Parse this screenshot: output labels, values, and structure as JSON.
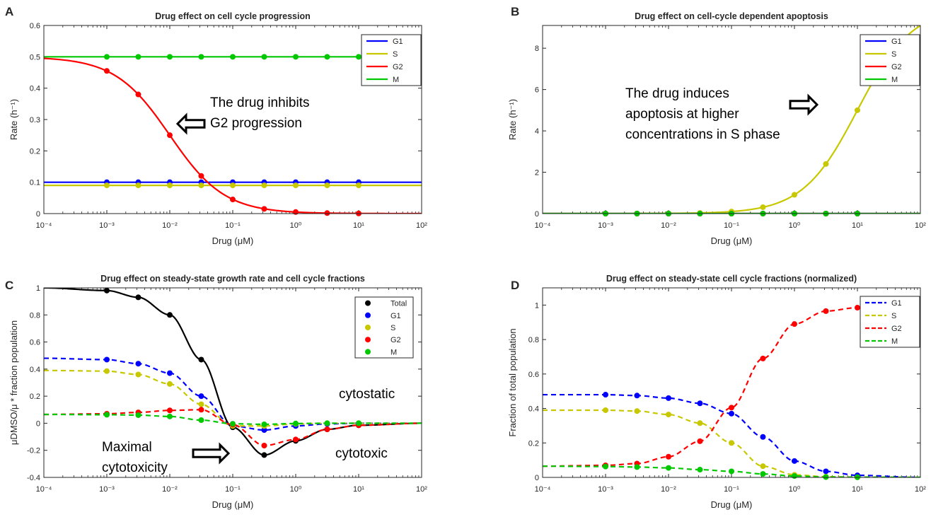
{
  "figure_panels": [
    "A",
    "B",
    "C",
    "D"
  ],
  "chart_data": [
    {
      "panel": "A",
      "type": "line",
      "title": "Drug effect on cell cycle progression",
      "xlabel": "Drug (μM)",
      "ylabel": "Rate (h⁻¹)",
      "xscale": "log",
      "xlim": [
        0.0001,
        100
      ],
      "ylim": [
        0,
        0.6
      ],
      "xticks": [
        "10⁻⁴",
        "10⁻³",
        "10⁻²",
        "10⁻¹",
        "10⁰",
        "10¹",
        "10²"
      ],
      "yticks": [
        "0",
        "0.1",
        "0.2",
        "0.3",
        "0.4",
        "0.5",
        "0.6"
      ],
      "legend_position": "top-right",
      "markers_x": [
        0.001,
        0.00316,
        0.01,
        0.0316,
        0.1,
        0.316,
        1,
        3.16,
        10
      ],
      "series": [
        {
          "name": "G1",
          "color": "#0000ff",
          "style": "solid",
          "curve": "const",
          "params": {
            "v": 0.1
          },
          "markers": [
            0.1,
            0.1,
            0.1,
            0.1,
            0.1,
            0.1,
            0.1,
            0.1,
            0.1
          ]
        },
        {
          "name": "S",
          "color": "#c8c800",
          "style": "solid",
          "curve": "const",
          "params": {
            "v": 0.09
          },
          "markers": [
            0.09,
            0.09,
            0.09,
            0.09,
            0.09,
            0.09,
            0.09,
            0.09,
            0.09
          ]
        },
        {
          "name": "G2",
          "color": "#ff0000",
          "style": "solid",
          "curve": "hill_down",
          "params": {
            "top": 0.5,
            "ec50": 0.01,
            "n": 1
          },
          "markers": [
            0.455,
            0.38,
            0.25,
            0.12,
            0.045,
            0.015,
            0.005,
            0.0016,
            0.0005
          ]
        },
        {
          "name": "M",
          "color": "#00c800",
          "style": "solid",
          "curve": "const",
          "params": {
            "v": 0.5
          },
          "markers": [
            0.5,
            0.5,
            0.5,
            0.5,
            0.5,
            0.5,
            0.5,
            0.5,
            0.5
          ]
        }
      ],
      "annotation": {
        "lines": [
          "The drug inhibits",
          "G2 progression"
        ]
      }
    },
    {
      "panel": "B",
      "type": "line",
      "title": "Drug effect on cell-cycle dependent apoptosis",
      "xlabel": "Drug (μM)",
      "ylabel": "Rate (h⁻¹)",
      "xscale": "log",
      "xlim": [
        0.0001,
        100
      ],
      "ylim": [
        0,
        9.1
      ],
      "xticks": [
        "10⁻⁴",
        "10⁻³",
        "10⁻²",
        "10⁻¹",
        "10⁰",
        "10¹",
        "10²"
      ],
      "yticks": [
        "0",
        "2",
        "4",
        "6",
        "8"
      ],
      "legend_position": "top-right",
      "markers_x": [
        0.001,
        0.00316,
        0.01,
        0.0316,
        0.1,
        0.316,
        1,
        3.16,
        10
      ],
      "series": [
        {
          "name": "G1",
          "color": "#0000ff",
          "style": "solid",
          "curve": "const",
          "params": {
            "v": 0
          },
          "markers": [
            0,
            0,
            0,
            0,
            0,
            0,
            0,
            0,
            0
          ]
        },
        {
          "name": "S",
          "color": "#c8c800",
          "style": "solid",
          "curve": "hill_up",
          "params": {
            "top": 10,
            "ec50": 10,
            "n": 1
          },
          "markers": [
            0.001,
            0.003,
            0.01,
            0.032,
            0.1,
            0.31,
            0.91,
            2.4,
            5
          ]
        },
        {
          "name": "G2",
          "color": "#ff0000",
          "style": "solid",
          "curve": "const",
          "params": {
            "v": 0
          },
          "markers": [
            0,
            0,
            0,
            0,
            0,
            0,
            0,
            0,
            0
          ]
        },
        {
          "name": "M",
          "color": "#00c800",
          "style": "solid",
          "curve": "const",
          "params": {
            "v": 0
          },
          "markers": [
            0,
            0,
            0,
            0,
            0,
            0,
            0,
            0,
            0
          ]
        }
      ],
      "annotation": {
        "lines": [
          "The drug induces",
          "apoptosis at higher",
          "concentrations in S phase"
        ]
      }
    },
    {
      "panel": "C",
      "type": "line",
      "title": "Drug effect on steady-state growth rate and cell cycle fractions",
      "xlabel": "Drug (μM)",
      "ylabel": "μDMSO/μ * fraction population",
      "xscale": "log",
      "xlim": [
        0.0001,
        100
      ],
      "ylim": [
        -0.4,
        1
      ],
      "xticks": [
        "10⁻⁴",
        "10⁻³",
        "10⁻²",
        "10⁻¹",
        "10⁰",
        "10¹",
        "10²"
      ],
      "yticks": [
        "-0.4",
        "-0.2",
        "0",
        "0.2",
        "0.4",
        "0.6",
        "0.8",
        "1"
      ],
      "legend_position": "top-right",
      "legend_type": "marker",
      "markers_x": [
        0.001,
        0.00316,
        0.01,
        0.0316,
        0.1,
        0.316,
        1,
        3.16,
        10
      ],
      "series": [
        {
          "name": "Total",
          "color": "#000000",
          "style": "solid",
          "markers": [
            0.98,
            0.93,
            0.8,
            0.47,
            -0.03,
            -0.235,
            -0.13,
            -0.045,
            -0.015
          ]
        },
        {
          "name": "G1",
          "color": "#0000ff",
          "style": "dashed",
          "markers": [
            0.47,
            0.44,
            0.37,
            0.2,
            -0.02,
            -0.05,
            -0.02,
            -0.005,
            0
          ]
        },
        {
          "name": "S",
          "color": "#c8c800",
          "style": "dashed",
          "markers": [
            0.385,
            0.36,
            0.29,
            0.14,
            -0.02,
            -0.02,
            -0.005,
            0,
            0
          ]
        },
        {
          "name": "G2",
          "color": "#ff0000",
          "style": "dashed",
          "markers": [
            0.07,
            0.08,
            0.095,
            0.1,
            -0.01,
            -0.165,
            -0.12,
            -0.045,
            -0.015
          ]
        },
        {
          "name": "M",
          "color": "#00c800",
          "style": "dashed",
          "markers": [
            0.063,
            0.06,
            0.05,
            0.023,
            -0.004,
            -0.008,
            -0.002,
            0,
            0
          ]
        }
      ],
      "asymptote_left": [
        1.0,
        0.48,
        0.39,
        0.065,
        0.065
      ],
      "annotations": [
        {
          "text": "cytostatic"
        },
        {
          "text": "cytotoxic"
        },
        {
          "lines": [
            "Maximal",
            "cytotoxicity"
          ]
        }
      ]
    },
    {
      "panel": "D",
      "type": "line",
      "title": "Drug effect on steady-state cell cycle fractions (normalized)",
      "xlabel": "Drug (μM)",
      "ylabel": "Fraction of total population",
      "xscale": "log",
      "xlim": [
        0.0001,
        100
      ],
      "ylim": [
        0,
        1.1
      ],
      "xticks": [
        "10⁻⁴",
        "10⁻³",
        "10⁻²",
        "10⁻¹",
        "10⁰",
        "10¹",
        "10²"
      ],
      "yticks": [
        "0",
        "0.2",
        "0.4",
        "0.6",
        "0.8",
        "1"
      ],
      "legend_position": "top-right",
      "markers_x": [
        0.001,
        0.00316,
        0.01,
        0.0316,
        0.1,
        0.316,
        1,
        3.16,
        10
      ],
      "series": [
        {
          "name": "G1",
          "color": "#0000ff",
          "style": "dashed",
          "markers": [
            0.48,
            0.475,
            0.46,
            0.43,
            0.37,
            0.235,
            0.095,
            0.035,
            0.012
          ]
        },
        {
          "name": "S",
          "color": "#c8c800",
          "style": "dashed",
          "markers": [
            0.39,
            0.385,
            0.365,
            0.315,
            0.2,
            0.065,
            0.015,
            0.004,
            0.001
          ]
        },
        {
          "name": "G2",
          "color": "#ff0000",
          "style": "dashed",
          "markers": [
            0.07,
            0.08,
            0.12,
            0.21,
            0.405,
            0.69,
            0.89,
            0.965,
            0.985
          ]
        },
        {
          "name": "M",
          "color": "#00c800",
          "style": "dashed",
          "markers": [
            0.063,
            0.06,
            0.055,
            0.045,
            0.035,
            0.02,
            0.008,
            0.002,
            0.001
          ]
        }
      ],
      "asymptote_left": [
        0.48,
        0.39,
        0.065,
        0.065
      ],
      "asymptote_right": [
        0,
        0,
        1,
        0
      ]
    }
  ]
}
